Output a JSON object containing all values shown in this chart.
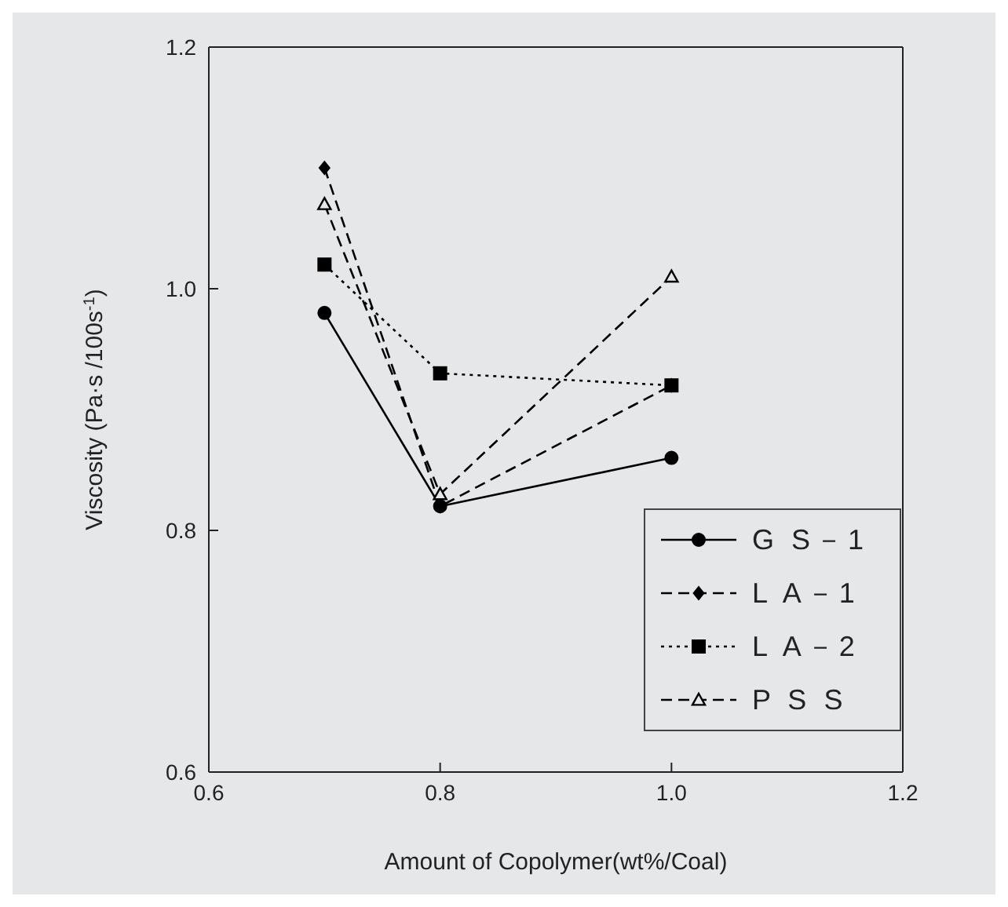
{
  "chart_data": {
    "type": "line",
    "xlabel": "Amount of Copolymer(wt%/Coal)",
    "ylabel": "Viscosity (Pa·s /100s$^{-1}$)",
    "x": [
      0.7,
      0.8,
      1.0
    ],
    "series": [
      {
        "name": "G S－1",
        "color": "#000000",
        "values": [
          0.98,
          0.82,
          0.86
        ],
        "marker": "circle",
        "line_style": "solid"
      },
      {
        "name": "L A－1",
        "color": "#000000",
        "values": [
          1.1,
          0.82,
          0.92
        ],
        "marker": "diamond",
        "line_style": "dashed"
      },
      {
        "name": "L A－2",
        "color": "#000000",
        "values": [
          1.02,
          0.93,
          0.92
        ],
        "marker": "square",
        "line_style": "dotted"
      },
      {
        "name": "P S S",
        "color": "#000000",
        "values": [
          1.07,
          0.83,
          1.01
        ],
        "marker": "triangle",
        "line_style": "dashed"
      }
    ],
    "xlim": [
      0.6,
      1.2
    ],
    "xticks": [
      {
        "value": 0.6,
        "label": "0.6"
      },
      {
        "value": 0.8,
        "label": "0.8"
      },
      {
        "value": 1.0,
        "label": "1.0"
      },
      {
        "value": 1.2,
        "label": "1.2"
      }
    ],
    "ylim": [
      0.6,
      1.2
    ],
    "yticks": [
      {
        "value": 0.6,
        "label": "0.6"
      },
      {
        "value": 0.8,
        "label": "0.8"
      },
      {
        "value": 1.0,
        "label": "1.0"
      },
      {
        "value": 1.2,
        "label": "1.2"
      }
    ],
    "grid": false,
    "legend": "bottom right"
  }
}
